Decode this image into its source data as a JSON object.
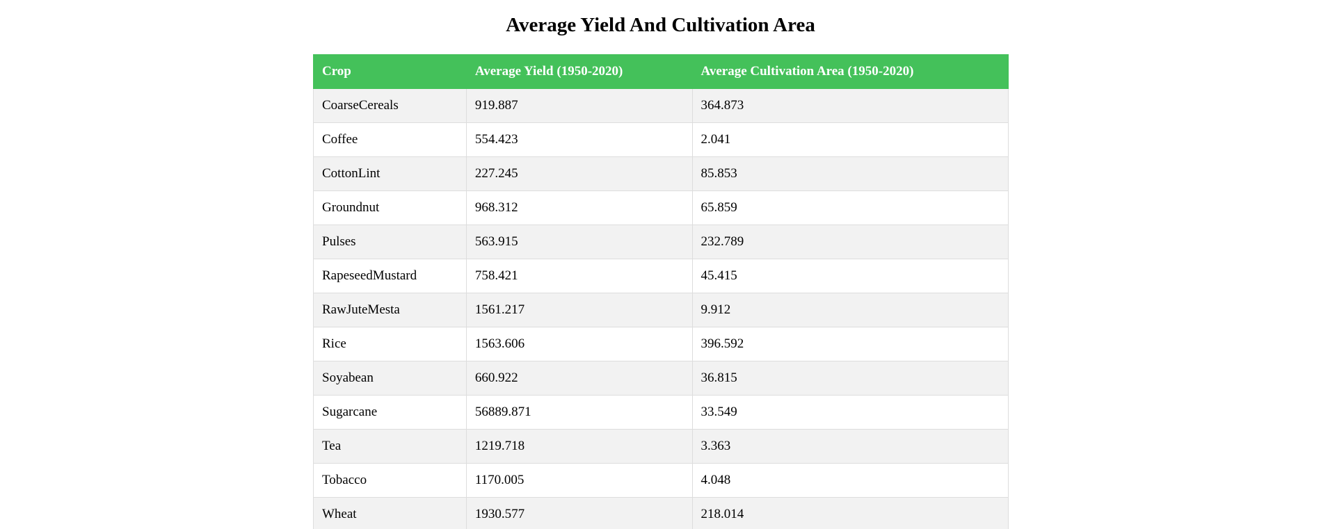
{
  "page": {
    "title": "Average Yield And Cultivation Area"
  },
  "table": {
    "headers": [
      "Crop",
      "Average Yield (1950-2020)",
      "Average Cultivation Area (1950-2020)"
    ],
    "rows": [
      [
        "CoarseCereals",
        "919.887",
        "364.873"
      ],
      [
        "Coffee",
        "554.423",
        "2.041"
      ],
      [
        "CottonLint",
        "227.245",
        "85.853"
      ],
      [
        "Groundnut",
        "968.312",
        "65.859"
      ],
      [
        "Pulses",
        "563.915",
        "232.789"
      ],
      [
        "RapeseedMustard",
        "758.421",
        "45.415"
      ],
      [
        "RawJuteMesta",
        "1561.217",
        "9.912"
      ],
      [
        "Rice",
        "1563.606",
        "396.592"
      ],
      [
        "Soyabean",
        "660.922",
        "36.815"
      ],
      [
        "Sugarcane",
        "56889.871",
        "33.549"
      ],
      [
        "Tea",
        "1219.718",
        "3.363"
      ],
      [
        "Tobacco",
        "1170.005",
        "4.048"
      ],
      [
        "Wheat",
        "1930.577",
        "218.014"
      ]
    ]
  },
  "colors": {
    "header_bg": "#44c15a",
    "header_text": "#ffffff",
    "row_stripe": "#f2f2f2",
    "border": "#dddddd"
  }
}
